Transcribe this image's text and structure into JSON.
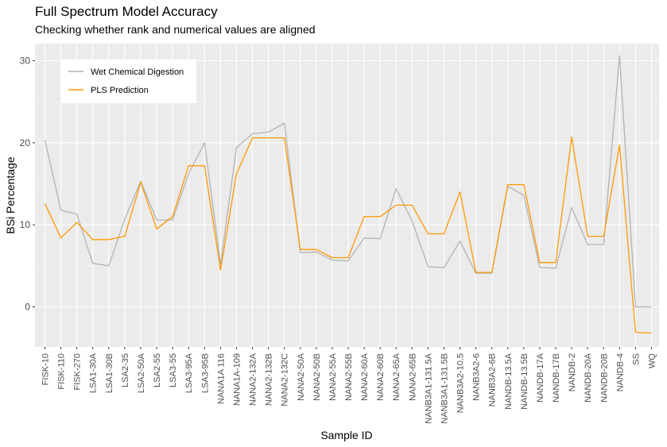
{
  "chart_data": {
    "type": "line",
    "title": "Full Spectrum Model Accuracy",
    "subtitle": "Checking whether rank and numerical values are aligned",
    "xlabel": "Sample ID",
    "ylabel": "BSi Percentage",
    "ylim": [
      -5,
      32
    ],
    "yticks": [
      0,
      10,
      20,
      30
    ],
    "grid": true,
    "legend_position": "top-left",
    "categories": [
      "FISK-10",
      "FISK-110",
      "FISK-270",
      "LSA1-30A",
      "LSA1-30B",
      "LSA2-35",
      "LSA2-50A",
      "LSA2-55",
      "LSA3-55",
      "LSA3-95A",
      "LSA3-95B",
      "NANA1A 116",
      "NANA1A-109",
      "NANA2-132A",
      "NANA2-132B",
      "NANA2-132C",
      "NANA2-50A",
      "NANA2-50B",
      "NANA2-55A",
      "NANA2-55B",
      "NANA2-60A",
      "NANA2-60B",
      "NANA2-65A",
      "NANA2-65B",
      "NANB3A1-131.5A",
      "NANB3A1-131.5B",
      "NANB3A2-10.5",
      "NANB3A2-6",
      "NANB3A2-6B",
      "NANDB-13.5A",
      "NANDB-13.5B",
      "NANDB-17A",
      "NANDB-17B",
      "NANDB-2",
      "NANDB-20A",
      "NANDB-20B",
      "NANDB-4",
      "SS",
      "WQ"
    ],
    "series": [
      {
        "name": "Wet Chemical Digestion",
        "color": "#b3b3b3",
        "values": [
          20.3,
          11.8,
          11.3,
          5.3,
          5.0,
          10.7,
          15.3,
          10.6,
          10.6,
          16.2,
          20.0,
          5.2,
          19.4,
          21.1,
          21.3,
          22.4,
          6.6,
          6.7,
          5.7,
          5.6,
          8.4,
          8.3,
          14.4,
          10.5,
          4.9,
          4.8,
          8.0,
          4.1,
          4.1,
          14.7,
          13.6,
          4.8,
          4.7,
          12.1,
          7.6,
          7.6,
          30.6,
          0.0,
          0.0
        ]
      },
      {
        "name": "PLS Prediction",
        "color": "#ff9900",
        "values": [
          12.6,
          8.4,
          10.3,
          8.2,
          8.2,
          8.6,
          15.2,
          9.5,
          11.0,
          17.2,
          17.2,
          4.5,
          16.2,
          20.6,
          20.6,
          20.6,
          7.0,
          7.0,
          6.0,
          6.0,
          11.0,
          11.0,
          12.4,
          12.4,
          8.9,
          8.9,
          14.0,
          4.2,
          4.2,
          14.9,
          14.9,
          5.4,
          5.4,
          20.7,
          8.6,
          8.6,
          19.7,
          -3.1,
          -3.2
        ]
      }
    ]
  }
}
